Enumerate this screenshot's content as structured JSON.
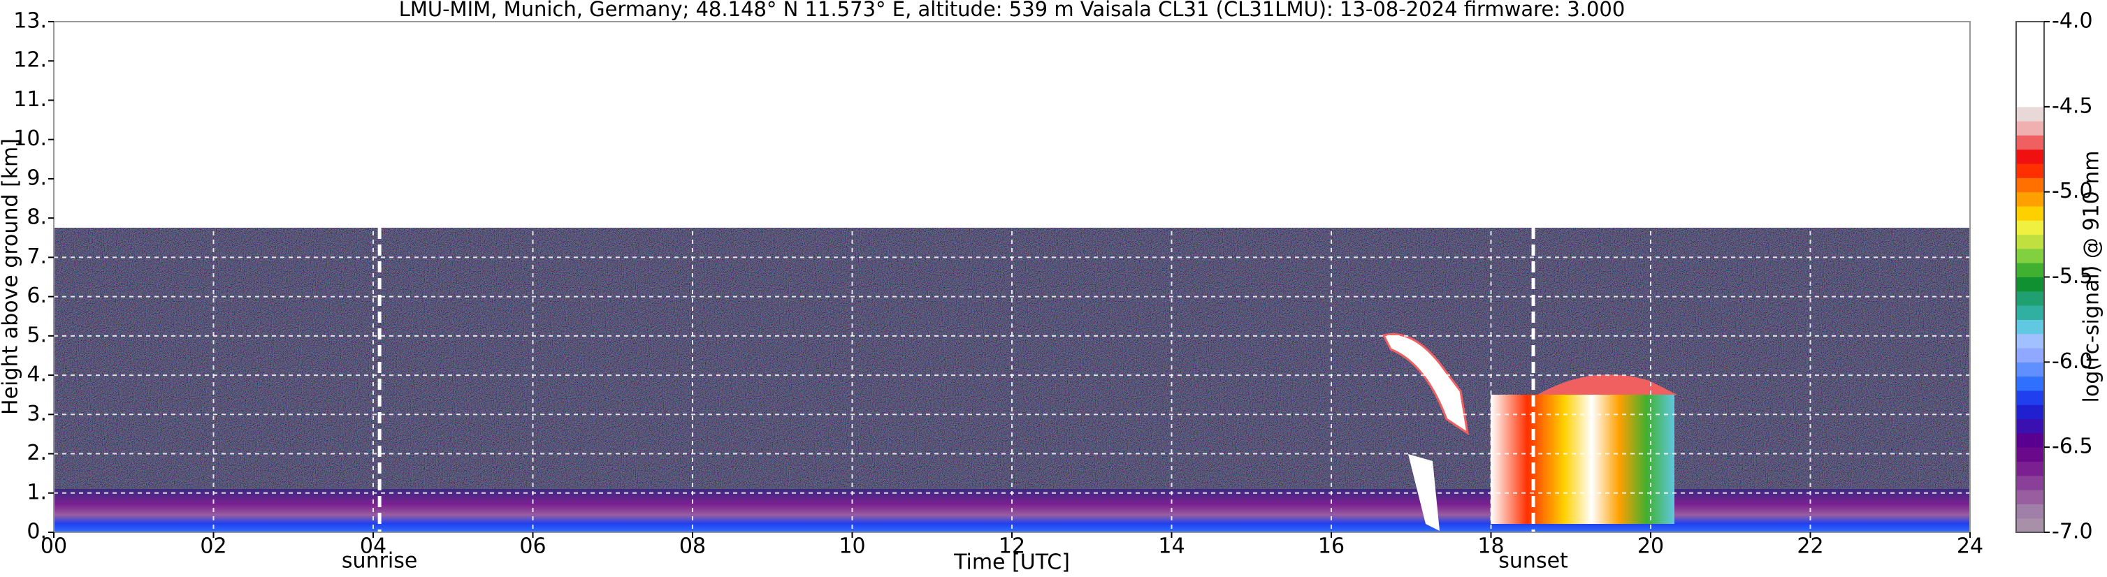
{
  "chart_data": {
    "type": "heatmap",
    "title": "LMU-MIM, Munich, Germany; 48.148° N 11.573° E, altitude: 539 m    Vaisala CL31 (CL31LMU): 13-08-2024    firmware: 3.000",
    "x_label": "Time [UTC]",
    "y_label": "Height above ground [km]",
    "colorbar_label": "log(rc-signal) @ 910 nm",
    "xlim": [
      0,
      24
    ],
    "xticks": [
      {
        "value": 0,
        "label": "00"
      },
      {
        "value": 2,
        "label": "02"
      },
      {
        "value": 4,
        "label": "04"
      },
      {
        "value": 6,
        "label": "06"
      },
      {
        "value": 8,
        "label": "08"
      },
      10,
      12,
      14,
      16,
      18,
      20,
      22,
      24
    ],
    "ylim": [
      0,
      13
    ],
    "yticks": [
      {
        "value": 0,
        "label": "0."
      },
      {
        "value": 1,
        "label": "1."
      },
      {
        "value": 2,
        "label": "2."
      },
      {
        "value": 3,
        "label": "3."
      },
      {
        "value": 4,
        "label": "4."
      },
      {
        "value": 5,
        "label": "5."
      },
      {
        "value": 6,
        "label": "6."
      },
      {
        "value": 7,
        "label": "7."
      },
      {
        "value": 8,
        "label": "8."
      },
      {
        "value": 9,
        "label": "9."
      },
      {
        "value": 10,
        "label": "10."
      },
      {
        "value": 11,
        "label": "11."
      },
      {
        "value": 12,
        "label": "12."
      },
      {
        "value": 13,
        "label": "13."
      }
    ],
    "clim": [
      -7,
      -4
    ],
    "cticks": [
      {
        "value": -7,
        "label": "-7.0"
      },
      {
        "value": -6.5,
        "label": "-6.5"
      },
      {
        "value": -6,
        "label": "-6.0"
      },
      {
        "value": -5.5,
        "label": "-5.5"
      },
      {
        "value": -5,
        "label": "-5.0"
      },
      {
        "value": -4.5,
        "label": "-4.5"
      },
      {
        "value": -4,
        "label": "-4.0"
      }
    ],
    "colormap": [
      "#a890a8",
      "#a080a8",
      "#985ea0",
      "#8a4098",
      "#7a2090",
      "#6a0a8a",
      "#5a0090",
      "#3a10b0",
      "#2020d0",
      "#2040f0",
      "#3070ff",
      "#6090ff",
      "#90a8ff",
      "#a0c0ff",
      "#60c8e0",
      "#30b0a0",
      "#20a070",
      "#109030",
      "#40b030",
      "#80d040",
      "#c0e040",
      "#f0f040",
      "#ffd000",
      "#ffa000",
      "#ff7000",
      "#ff3000",
      "#f01010",
      "#f06060",
      "#f0b0b0",
      "#e8d8d8",
      "#ffffff",
      "#ffffff",
      "#ffffff",
      "#ffffff",
      "#ffffff",
      "#ffffff"
    ],
    "grid": true,
    "annotations": [
      {
        "text": "sunrise",
        "x": 4.08
      },
      {
        "text": "sunset",
        "x": 18.53
      }
    ]
  }
}
